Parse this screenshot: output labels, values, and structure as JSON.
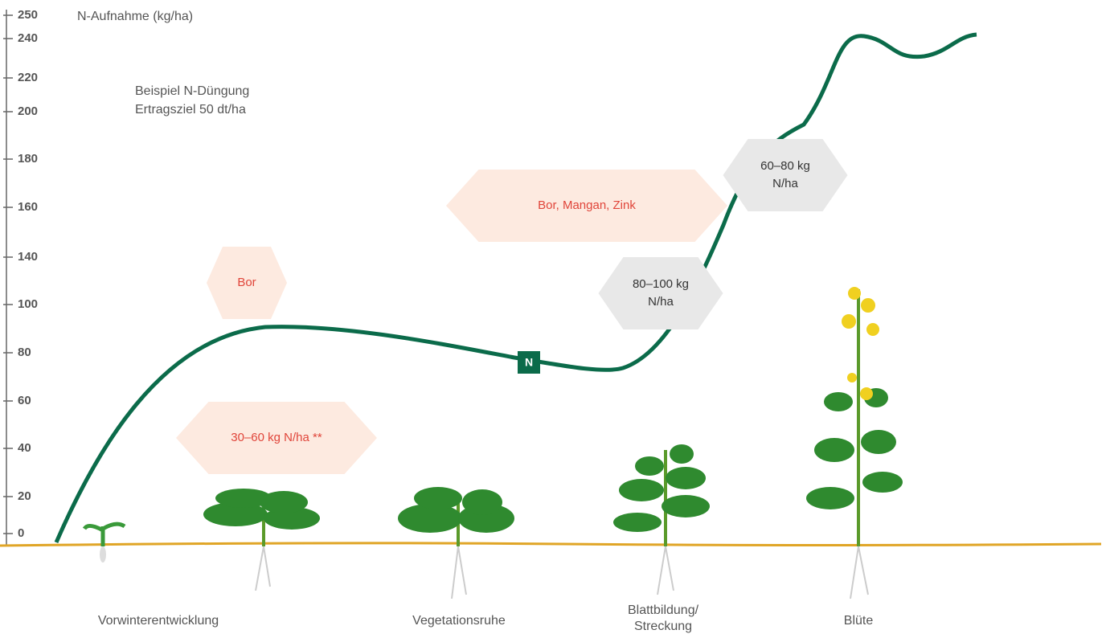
{
  "axis": {
    "title": "N-Aufnahme (kg/ha)",
    "labels": [
      "250",
      "240",
      "220",
      "200",
      "180",
      "160",
      "140",
      "100",
      "80",
      "60",
      "40",
      "20",
      "0"
    ]
  },
  "note": [
    "Beispiel N-Düngung",
    "Ertragsziel 50 dt/ha"
  ],
  "badge": "N",
  "micronutrients": [
    {
      "lines": [
        "Bor"
      ]
    },
    {
      "lines": [
        "Bor, Mangan, Zink"
      ]
    },
    {
      "lines": [
        "30–60 kg N/ha **"
      ]
    }
  ],
  "fertilizer": [
    {
      "lines": [
        "80–100 kg",
        "N/ha"
      ]
    },
    {
      "lines": [
        "60–80 kg",
        "N/ha"
      ]
    }
  ],
  "stages": [
    {
      "lines": [
        "Vorwinterentwicklung"
      ]
    },
    {
      "lines": [
        "Vegetationsruhe"
      ]
    },
    {
      "lines": [
        "Blattbildung/",
        "Streckung"
      ]
    },
    {
      "lines": [
        "Blüte"
      ]
    }
  ]
}
